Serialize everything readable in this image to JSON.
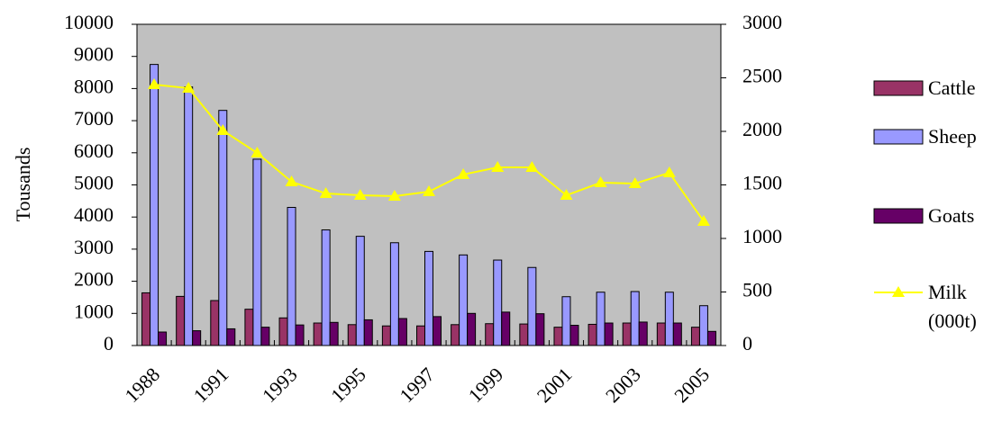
{
  "chart_data": {
    "type": "bar",
    "ylabel": "Tousands",
    "categories": [
      "1988",
      null,
      "1991",
      null,
      "1993",
      null,
      "1995",
      null,
      "1997",
      null,
      "1999",
      null,
      "2001",
      null,
      "2003",
      null,
      "2005"
    ],
    "series": [
      {
        "name": "Cattle",
        "color": "#993366",
        "values": [
          1640,
          1530,
          1400,
          1130,
          860,
          700,
          650,
          610,
          610,
          650,
          680,
          670,
          570,
          660,
          700,
          700,
          570
        ]
      },
      {
        "name": "Sheep",
        "color": "#9999ff",
        "values": [
          8750,
          8050,
          7320,
          5800,
          4300,
          3600,
          3400,
          3200,
          2930,
          2820,
          2660,
          2430,
          1520,
          1660,
          1680,
          1660,
          1240
        ]
      },
      {
        "name": "Goats",
        "color": "#660066",
        "values": [
          420,
          460,
          520,
          570,
          640,
          720,
          800,
          840,
          900,
          1000,
          1040,
          990,
          630,
          700,
          730,
          700,
          440
        ]
      },
      {
        "name": "Milk (000t)",
        "color": "#ffff00",
        "type": "line",
        "axis": "y2",
        "values": [
          2437,
          2403,
          2008,
          1798,
          1529,
          1420,
          1403,
          1395,
          1437,
          1597,
          1664,
          1664,
          1403,
          1521,
          1513,
          1613,
          1160
        ]
      }
    ],
    "ylim": [
      0,
      10000
    ],
    "yticks": [
      0,
      1000,
      2000,
      3000,
      4000,
      5000,
      6000,
      7000,
      8000,
      9000,
      10000
    ],
    "y2lim": [
      0,
      3000
    ],
    "y2ticks": [
      0,
      500,
      1000,
      1500,
      2000,
      2500,
      3000
    ],
    "legend": "right",
    "plot_background": "#c0c0c0"
  }
}
